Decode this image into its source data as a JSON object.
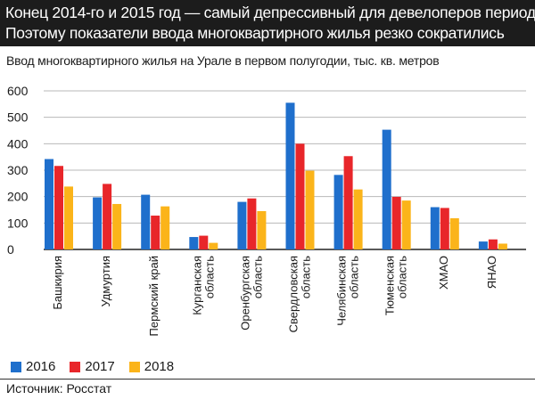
{
  "header": {
    "line1": "Конец 2014-го и 2015 год — самый депрессивный для девелоперов период.",
    "line2": "Поэтому показатели ввода многоквартирного жилья резко сократились"
  },
  "source": "Источник: Росстат",
  "colors": {
    "header_bg": "#1c1c1c",
    "s2016": "#1f6fcc",
    "s2017": "#e8262a",
    "s2018": "#fbb41a",
    "grid": "#b8b8b8"
  },
  "chart_data": {
    "type": "bar",
    "title": "Ввод многоквартирного жилья на Урале в первом полугодии, тыс. кв. метров",
    "categories": [
      [
        "Башкирия"
      ],
      [
        "Удмуртия"
      ],
      [
        "Пермский край"
      ],
      [
        "Курганская",
        "область"
      ],
      [
        "Оренбургская",
        "область"
      ],
      [
        "Свердловская",
        "область"
      ],
      [
        "Челябинская",
        "область"
      ],
      [
        "Тюменская",
        "область"
      ],
      [
        "ХМАО"
      ],
      [
        "ЯНАО"
      ]
    ],
    "series": [
      {
        "name": "2016",
        "color": "#1f6fcc",
        "values": [
          342,
          197,
          207,
          47,
          180,
          555,
          282,
          453,
          160,
          30
        ]
      },
      {
        "name": "2017",
        "color": "#e8262a",
        "values": [
          316,
          248,
          128,
          52,
          193,
          400,
          353,
          199,
          157,
          38
        ]
      },
      {
        "name": "2018",
        "color": "#fbb41a",
        "values": [
          238,
          172,
          163,
          25,
          145,
          298,
          227,
          185,
          118,
          22
        ]
      }
    ],
    "yticks": [
      0,
      100,
      200,
      300,
      400,
      500,
      600
    ],
    "ylim": [
      0,
      600
    ],
    "grid": true,
    "legend_position": "bottom-left"
  }
}
